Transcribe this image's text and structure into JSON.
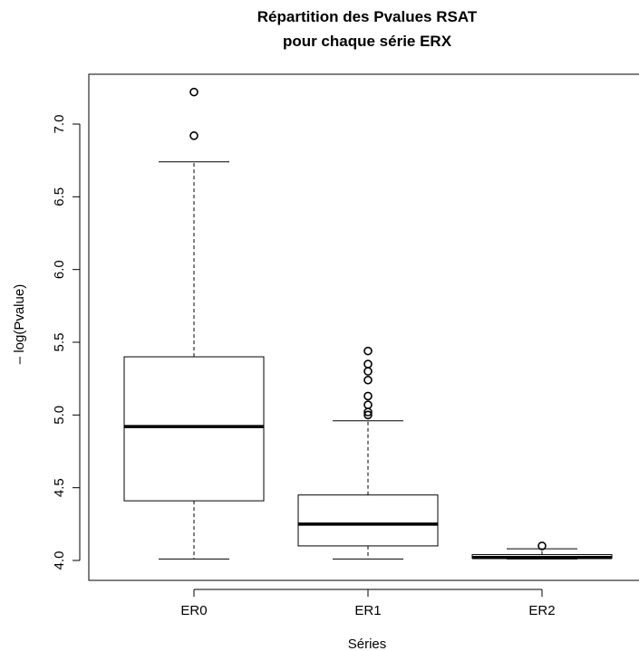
{
  "chart_data": {
    "type": "boxplot",
    "title_line1": "Répartition des Pvalues RSAT",
    "title_line2": "pour chaque série ERX",
    "xlabel": "Séries",
    "ylabel": "– log(Pvalue)",
    "ylim": [
      3.9,
      7.3
    ],
    "yticks": [
      4.0,
      4.5,
      5.0,
      5.5,
      6.0,
      6.5,
      7.0
    ],
    "ytick_labels": [
      "4.0",
      "4.5",
      "5.0",
      "5.5",
      "6.0",
      "6.5",
      "7.0"
    ],
    "grid": false,
    "series": [
      {
        "name": "ER0",
        "whisker_low": 4.01,
        "q1": 4.41,
        "median": 4.92,
        "q3": 5.4,
        "whisker_high": 6.74,
        "outliers": [
          6.92,
          7.22
        ]
      },
      {
        "name": "ER1",
        "whisker_low": 4.01,
        "q1": 4.1,
        "median": 4.25,
        "q3": 4.45,
        "whisker_high": 4.96,
        "outliers": [
          5.0,
          5.02,
          5.07,
          5.13,
          5.24,
          5.3,
          5.35,
          5.44
        ]
      },
      {
        "name": "ER2",
        "whisker_low": 4.01,
        "q1": 4.015,
        "median": 4.02,
        "q3": 4.04,
        "whisker_high": 4.08,
        "outliers": [
          4.1
        ]
      }
    ]
  }
}
